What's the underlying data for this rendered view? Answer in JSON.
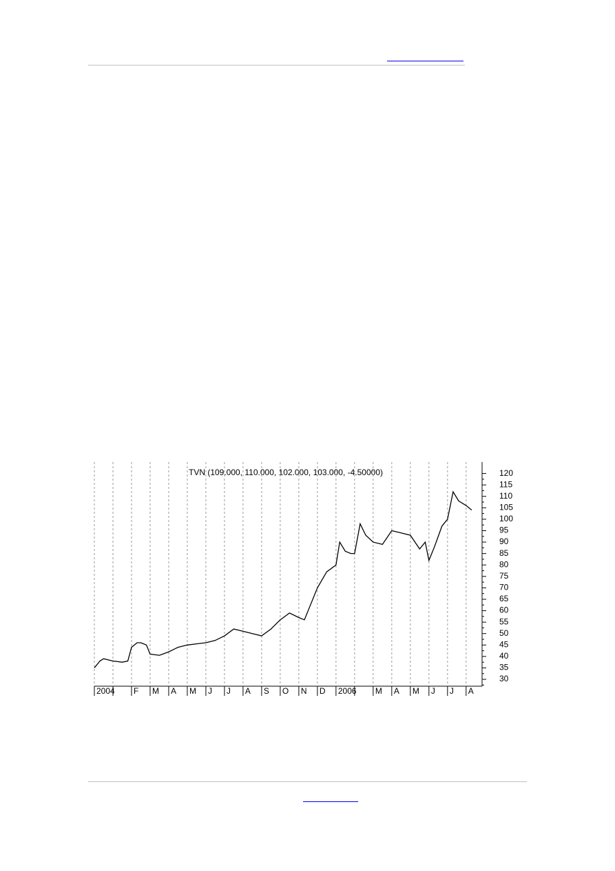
{
  "chart_data": {
    "type": "line",
    "title": "TVN (109.000, 110.000, 102.000, 103.000, -4.50000)",
    "x": [
      0,
      0.3,
      0.5,
      1,
      1.5,
      1.8,
      2,
      2.3,
      2.5,
      2.8,
      3,
      3.5,
      4,
      4.5,
      5,
      5.5,
      6,
      6.5,
      7,
      7.5,
      8,
      8.5,
      9,
      9.5,
      10,
      10.5,
      11,
      11.3,
      11.5,
      12,
      12.5,
      13,
      13.2,
      13.5,
      13.8,
      14,
      14.3,
      14.6,
      15,
      15.5,
      16,
      16.5,
      17,
      17.5,
      17.8,
      18,
      18.3,
      18.7,
      19,
      19.3,
      19.6,
      20,
      20.3
    ],
    "values": [
      35,
      38,
      39,
      38,
      37.5,
      38,
      44,
      46,
      46,
      45,
      41,
      40.5,
      42,
      44,
      45,
      45.5,
      46,
      47,
      49,
      52,
      51,
      50,
      49,
      52,
      56,
      59,
      57,
      56,
      60,
      70,
      77,
      80,
      90,
      86,
      85,
      85,
      98,
      93,
      90,
      89,
      95,
      94,
      93,
      87,
      90,
      82,
      88,
      97,
      100,
      112,
      108,
      106,
      104
    ],
    "color": "#000000",
    "xlim": [
      0,
      20.6
    ],
    "xticks": [
      {
        "value": 0,
        "label": "2004"
      },
      {
        "value": 1,
        "label": null
      },
      {
        "value": 2,
        "label": "F"
      },
      {
        "value": 3,
        "label": "M"
      },
      {
        "value": 4,
        "label": "A"
      },
      {
        "value": 5,
        "label": "M"
      },
      {
        "value": 6,
        "label": "J"
      },
      {
        "value": 7,
        "label": "J"
      },
      {
        "value": 8,
        "label": "A"
      },
      {
        "value": 9,
        "label": "S"
      },
      {
        "value": 10,
        "label": "O"
      },
      {
        "value": 11,
        "label": "N"
      },
      {
        "value": 12,
        "label": "D"
      },
      {
        "value": 13,
        "label": "2006"
      },
      {
        "value": 14,
        "label": null
      },
      {
        "value": 15,
        "label": "M"
      },
      {
        "value": 16,
        "label": "A"
      },
      {
        "value": 17,
        "label": "M"
      },
      {
        "value": 18,
        "label": "J"
      },
      {
        "value": 19,
        "label": "J"
      },
      {
        "value": 20,
        "label": "A"
      }
    ],
    "ylim": [
      27,
      125
    ],
    "yticks": [
      30,
      35,
      40,
      45,
      50,
      55,
      60,
      65,
      70,
      75,
      80,
      85,
      90,
      95,
      100,
      105,
      110,
      115,
      120
    ],
    "grid": true
  }
}
